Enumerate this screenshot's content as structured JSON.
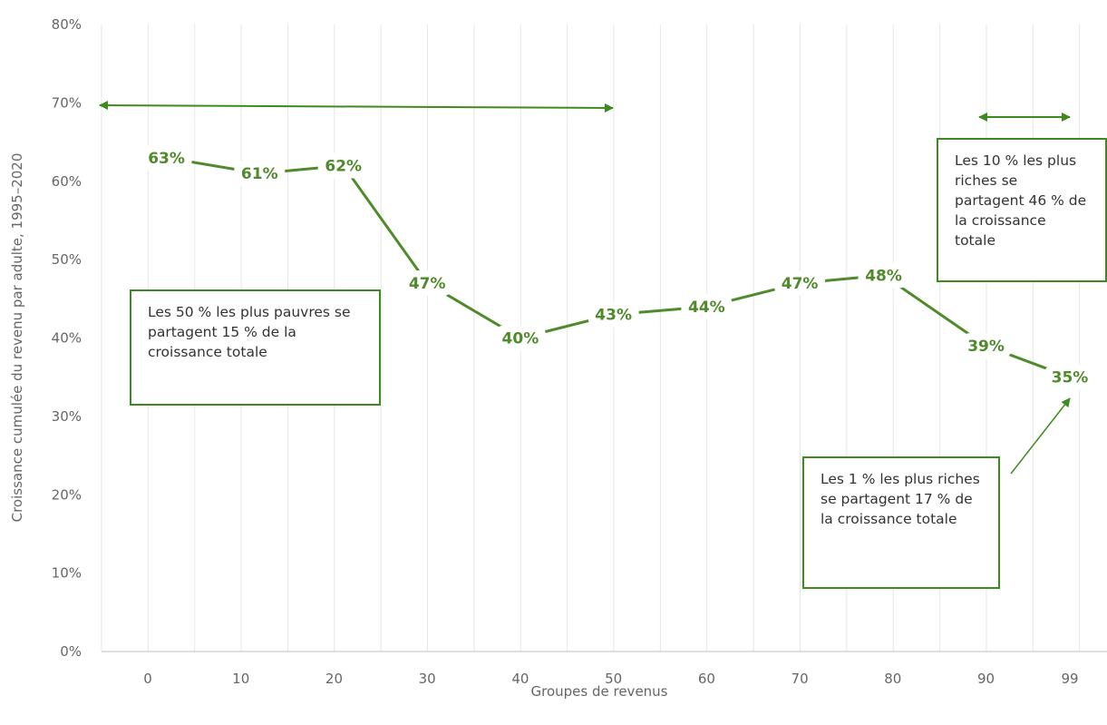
{
  "chart_data": {
    "type": "line",
    "xlabel": "Groupes de revenus",
    "ylabel": "Croissance cumulée du revenu par adulte, 1995–2020",
    "categories": [
      "0",
      "10",
      "20",
      "30",
      "40",
      "50",
      "60",
      "70",
      "80",
      "90",
      "99"
    ],
    "x": [
      2,
      12,
      21,
      30,
      40,
      50,
      60,
      70,
      79,
      90,
      99
    ],
    "values": [
      63,
      61,
      62,
      47,
      40,
      43,
      44,
      47,
      48,
      39,
      35
    ],
    "value_labels": [
      "63%",
      "61%",
      "62%",
      "47%",
      "40%",
      "43%",
      "44%",
      "47%",
      "48%",
      "39%",
      "35%"
    ],
    "yticks": [
      "0%",
      "10%",
      "20%",
      "30%",
      "40%",
      "50%",
      "60%",
      "70%",
      "80%"
    ],
    "ylim": [
      0,
      80
    ],
    "grid": true,
    "colors": {
      "line": "#4f8a2b",
      "grid": "#e6e6e6",
      "annotation": "#3d8a1e"
    },
    "annotations": [
      {
        "id": "bottom50",
        "text": "Les 50 % les plus pauvres se partagent 15 % de la croissance totale"
      },
      {
        "id": "top10",
        "text": "Les 10 % les plus riches se partagent 46 % de la croissance totale"
      },
      {
        "id": "top1",
        "text": "Les 1 % les plus riches se partagent 17 % de la croissance totale"
      }
    ]
  }
}
